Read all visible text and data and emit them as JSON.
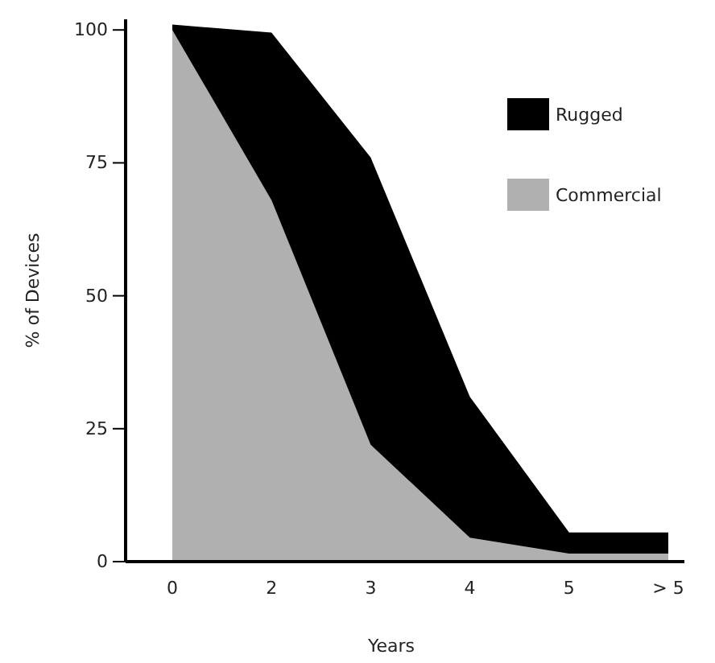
{
  "chart_data": {
    "type": "area",
    "xlabel": "Years",
    "ylabel": "% of Devices",
    "categories": [
      "0",
      "2",
      "3",
      "4",
      "5",
      "> 5"
    ],
    "series": [
      {
        "name": "Rugged",
        "color": "#000000",
        "values": [
          101,
          99.5,
          76,
          31,
          5.5,
          5.5
        ]
      },
      {
        "name": "Commercial",
        "color": "#b0b0b0",
        "values": [
          100,
          68,
          22,
          4.5,
          1.5,
          1.5
        ]
      }
    ],
    "ylim": [
      0,
      102
    ],
    "yticks": [
      0,
      25,
      50,
      75,
      100
    ],
    "legend": "top right",
    "grid": false
  }
}
